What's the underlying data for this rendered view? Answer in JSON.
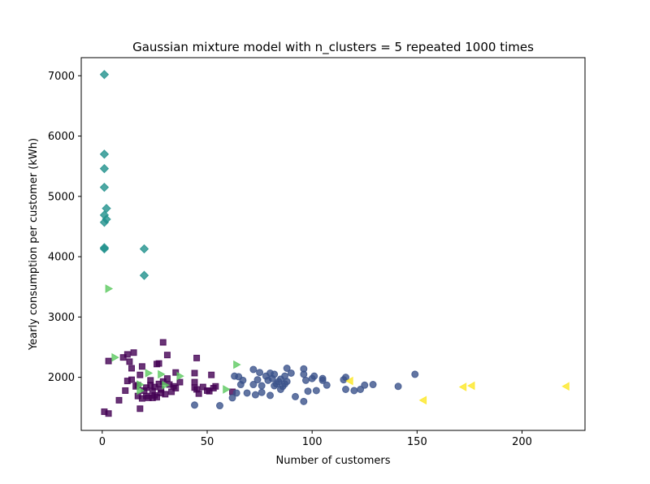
{
  "chart_data": {
    "type": "scatter",
    "title": "Gaussian mixture model with n_clusters = 5 repeated 1000 times",
    "xlabel": "Number of customers",
    "ylabel": "Yearly consumption per customer (kWh)",
    "xlim": [
      -10,
      230
    ],
    "ylim": [
      1120,
      7300
    ],
    "xticks": [
      0,
      50,
      100,
      150,
      200
    ],
    "yticks": [
      2000,
      3000,
      4000,
      5000,
      6000,
      7000
    ],
    "grid": false,
    "series": [
      {
        "marker": "square",
        "color": "#440154",
        "points": [
          [
            1,
            1430
          ],
          [
            3,
            1400
          ],
          [
            3,
            2270
          ],
          [
            8,
            1620
          ],
          [
            10,
            2330
          ],
          [
            11,
            1780
          ],
          [
            12,
            2380
          ],
          [
            12,
            1940
          ],
          [
            13,
            2260
          ],
          [
            14,
            2150
          ],
          [
            14,
            1960
          ],
          [
            15,
            2410
          ],
          [
            16,
            1850
          ],
          [
            17,
            1870
          ],
          [
            17,
            1690
          ],
          [
            18,
            2040
          ],
          [
            18,
            1480
          ],
          [
            19,
            2180
          ],
          [
            19,
            1650
          ],
          [
            20,
            1780
          ],
          [
            21,
            1690
          ],
          [
            21,
            1830
          ],
          [
            22,
            1660
          ],
          [
            23,
            1950
          ],
          [
            23,
            1870
          ],
          [
            24,
            1770
          ],
          [
            24,
            1660
          ],
          [
            25,
            1840
          ],
          [
            25,
            1700
          ],
          [
            26,
            2220
          ],
          [
            26,
            1670
          ],
          [
            27,
            2230
          ],
          [
            27,
            1890
          ],
          [
            28,
            1800
          ],
          [
            28,
            1740
          ],
          [
            29,
            2580
          ],
          [
            29,
            1930
          ],
          [
            30,
            1720
          ],
          [
            31,
            2370
          ],
          [
            31,
            1980
          ],
          [
            32,
            1880
          ],
          [
            33,
            1760
          ],
          [
            34,
            1850
          ],
          [
            35,
            2080
          ],
          [
            35,
            1820
          ],
          [
            37,
            1920
          ],
          [
            44,
            2070
          ],
          [
            44,
            1920
          ],
          [
            44,
            1830
          ],
          [
            45,
            2320
          ],
          [
            45,
            1800
          ],
          [
            46,
            1730
          ],
          [
            48,
            1840
          ],
          [
            50,
            1780
          ],
          [
            51,
            1770
          ],
          [
            52,
            2040
          ],
          [
            53,
            1820
          ],
          [
            54,
            1850
          ],
          [
            62,
            1760
          ]
        ]
      },
      {
        "marker": "circle",
        "color": "#3b528b",
        "points": [
          [
            44,
            1540
          ],
          [
            56,
            1530
          ],
          [
            62,
            1660
          ],
          [
            63,
            2020
          ],
          [
            64,
            1740
          ],
          [
            65,
            2010
          ],
          [
            66,
            1880
          ],
          [
            67,
            1950
          ],
          [
            69,
            1740
          ],
          [
            72,
            1880
          ],
          [
            72,
            2130
          ],
          [
            73,
            1710
          ],
          [
            74,
            1960
          ],
          [
            75,
            2080
          ],
          [
            76,
            1860
          ],
          [
            76,
            1750
          ],
          [
            78,
            2020
          ],
          [
            79,
            1950
          ],
          [
            80,
            2070
          ],
          [
            80,
            1700
          ],
          [
            81,
            1980
          ],
          [
            82,
            2050
          ],
          [
            82,
            1860
          ],
          [
            83,
            1890
          ],
          [
            84,
            1930
          ],
          [
            85,
            1800
          ],
          [
            85,
            1970
          ],
          [
            86,
            1850
          ],
          [
            87,
            1890
          ],
          [
            87,
            2020
          ],
          [
            88,
            2150
          ],
          [
            88,
            1930
          ],
          [
            90,
            2070
          ],
          [
            92,
            1680
          ],
          [
            96,
            2140
          ],
          [
            96,
            2050
          ],
          [
            96,
            1600
          ],
          [
            97,
            1950
          ],
          [
            98,
            1770
          ],
          [
            100,
            1980
          ],
          [
            101,
            2020
          ],
          [
            102,
            1780
          ],
          [
            105,
            1950
          ],
          [
            105,
            1980
          ],
          [
            107,
            1870
          ],
          [
            115,
            1960
          ],
          [
            116,
            2000
          ],
          [
            116,
            1800
          ],
          [
            120,
            1780
          ],
          [
            123,
            1800
          ],
          [
            125,
            1870
          ],
          [
            129,
            1880
          ],
          [
            141,
            1850
          ],
          [
            149,
            2050
          ]
        ]
      },
      {
        "marker": "diamond",
        "color": "#21918c",
        "points": [
          [
            1,
            7020
          ],
          [
            1,
            5700
          ],
          [
            1,
            5460
          ],
          [
            1,
            5150
          ],
          [
            1,
            4690
          ],
          [
            1,
            4570
          ],
          [
            1,
            4150
          ],
          [
            1,
            4130
          ],
          [
            2,
            4800
          ],
          [
            2,
            4620
          ],
          [
            20,
            4130
          ],
          [
            20,
            3690
          ]
        ]
      },
      {
        "marker": "triangle-right",
        "color": "#5ec962",
        "points": [
          [
            3,
            3470
          ],
          [
            6,
            2330
          ],
          [
            18,
            1880
          ],
          [
            18,
            1780
          ],
          [
            22,
            2070
          ],
          [
            28,
            2050
          ],
          [
            30,
            1870
          ],
          [
            37,
            2020
          ],
          [
            59,
            1800
          ],
          [
            64,
            2210
          ]
        ]
      },
      {
        "marker": "triangle-left",
        "color": "#fde725",
        "points": [
          [
            118,
            1940
          ],
          [
            153,
            1620
          ],
          [
            172,
            1840
          ],
          [
            176,
            1860
          ],
          [
            221,
            1850
          ]
        ]
      }
    ]
  }
}
